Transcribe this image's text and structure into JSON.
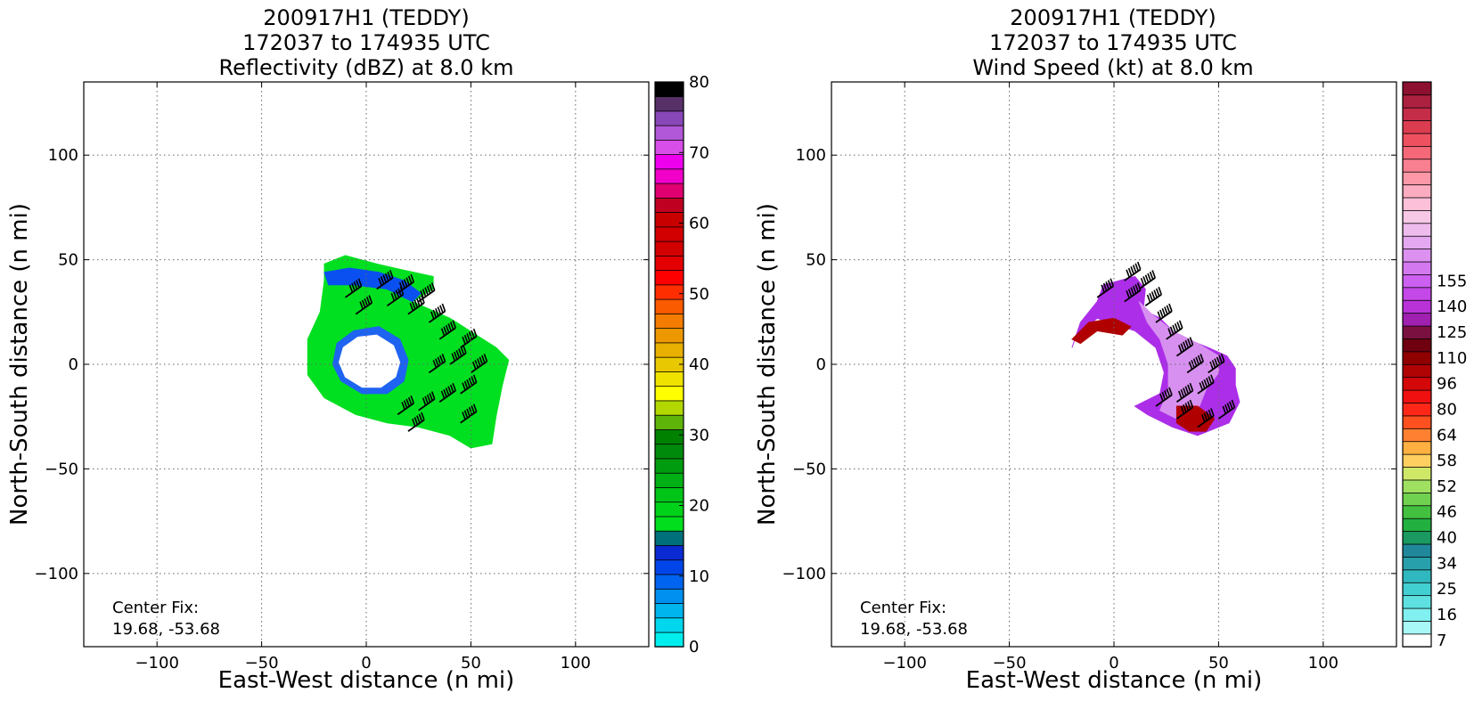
{
  "chart_data": [
    {
      "type": "heatmap",
      "title_lines": [
        "200917H1 (TEDDY)",
        "172037 to 174935 UTC",
        "Reflectivity (dBZ) at 8.0 km"
      ],
      "xlabel": "East-West distance (n mi)",
      "ylabel": "North-South distance (n mi)",
      "xlim": [
        -135,
        135
      ],
      "ylim": [
        -135,
        135
      ],
      "xticks": [
        -100,
        -50,
        0,
        50,
        100
      ],
      "yticks": [
        -100,
        -50,
        0,
        50,
        100
      ],
      "xtick_labels": [
        "−100",
        "−50",
        "0",
        "50",
        "100"
      ],
      "ytick_labels": [
        "−100",
        "−50",
        "0",
        "50",
        "100"
      ],
      "grid": true,
      "annotation_lines": [
        "Center Fix:",
        "19.68, -53.68"
      ],
      "colorbar": {
        "range": [
          0,
          80
        ],
        "tick_values": [
          0,
          10,
          20,
          30,
          40,
          50,
          60,
          70,
          80
        ],
        "tick_labels": [
          "0",
          "10",
          "20",
          "30",
          "40",
          "50",
          "60",
          "70",
          "80"
        ],
        "colors": [
          "#00eeee",
          "#00d6ee",
          "#00b4ee",
          "#0090f0",
          "#0064f0",
          "#0045e8",
          "#0a2ad2",
          "#00707a",
          "#00de1e",
          "#00d21a",
          "#00c418",
          "#00b014",
          "#009c10",
          "#008a0c",
          "#008200",
          "#5fb40a",
          "#b2d800",
          "#ffff00",
          "#efe200",
          "#e8c800",
          "#e8b000",
          "#ee9800",
          "#f47c00",
          "#fa5a00",
          "#ff2e00",
          "#ff0000",
          "#e40000",
          "#d20000",
          "#d20000",
          "#c80000",
          "#c00020",
          "#e00070",
          "#f000c8",
          "#ee00ee",
          "#d84ee8",
          "#b058d8",
          "#8848b8",
          "#583068",
          "#000000"
        ]
      },
      "regions": [
        {
          "name": "outer-echo",
          "color": "#00e020",
          "points": [
            [
              -20,
              48
            ],
            [
              -10,
              52
            ],
            [
              5,
              48
            ],
            [
              18,
              45
            ],
            [
              32,
              42
            ],
            [
              32,
              36
            ],
            [
              22,
              30
            ],
            [
              40,
              22
            ],
            [
              62,
              8
            ],
            [
              68,
              2
            ],
            [
              65,
              -10
            ],
            [
              62,
              -25
            ],
            [
              60,
              -38
            ],
            [
              50,
              -40
            ],
            [
              40,
              -34
            ],
            [
              25,
              -30
            ],
            [
              10,
              -28
            ],
            [
              -5,
              -24
            ],
            [
              -20,
              -16
            ],
            [
              -28,
              -5
            ],
            [
              -28,
              12
            ],
            [
              -22,
              25
            ],
            [
              -20,
              40
            ]
          ]
        },
        {
          "name": "eye-ring",
          "color": "#1e64f0",
          "points": [
            [
              -14,
              10
            ],
            [
              -6,
              16
            ],
            [
              6,
              18
            ],
            [
              16,
              12
            ],
            [
              20,
              2
            ],
            [
              18,
              -8
            ],
            [
              10,
              -14
            ],
            [
              -2,
              -14
            ],
            [
              -12,
              -8
            ],
            [
              -16,
              0
            ]
          ]
        },
        {
          "name": "eye",
          "color": "#ffffff",
          "points": [
            [
              -11,
              8
            ],
            [
              -4,
              13
            ],
            [
              5,
              14
            ],
            [
              13,
              9
            ],
            [
              16,
              1
            ],
            [
              14,
              -6
            ],
            [
              7,
              -11
            ],
            [
              -2,
              -11
            ],
            [
              -10,
              -6
            ],
            [
              -13,
              1
            ]
          ]
        },
        {
          "name": "north-band",
          "color": "#0a50f0",
          "points": [
            [
              -20,
              44
            ],
            [
              -8,
              46
            ],
            [
              6,
              44
            ],
            [
              18,
              40
            ],
            [
              26,
              34
            ],
            [
              22,
              30
            ],
            [
              10,
              36
            ],
            [
              -6,
              38
            ],
            [
              -18,
              38
            ]
          ]
        }
      ],
      "wind_barbs": [
        [
          5,
          36,
          60
        ],
        [
          15,
          34,
          60
        ],
        [
          25,
          30,
          55
        ],
        [
          10,
          28,
          50
        ],
        [
          20,
          24,
          55
        ],
        [
          30,
          20,
          60
        ],
        [
          35,
          12,
          55
        ],
        [
          45,
          8,
          60
        ],
        [
          40,
          0,
          55
        ],
        [
          50,
          -4,
          55
        ],
        [
          30,
          -4,
          50
        ],
        [
          45,
          -14,
          55
        ],
        [
          35,
          -18,
          55
        ],
        [
          25,
          -22,
          50
        ],
        [
          15,
          -24,
          50
        ],
        [
          45,
          -28,
          55
        ],
        [
          20,
          -32,
          45
        ],
        [
          -5,
          24,
          45
        ],
        [
          -10,
          32,
          45
        ]
      ]
    },
    {
      "type": "heatmap",
      "title_lines": [
        "200917H1 (TEDDY)",
        "172037 to 174935 UTC",
        "Wind Speed (kt) at 8.0 km"
      ],
      "xlabel": "East-West distance (n mi)",
      "ylabel": "North-South distance (n mi)",
      "xlim": [
        -135,
        135
      ],
      "ylim": [
        -135,
        135
      ],
      "xticks": [
        -100,
        -50,
        0,
        50,
        100
      ],
      "yticks": [
        -100,
        -50,
        0,
        50,
        100
      ],
      "xtick_labels": [
        "−100",
        "−50",
        "0",
        "50",
        "100"
      ],
      "ytick_labels": [
        "−100",
        "−50",
        "0",
        "50",
        "100"
      ],
      "grid": true,
      "annotation_lines": [
        "Center Fix:",
        "19.68, -53.68"
      ],
      "colorbar": {
        "tick_labels": [
          "7",
          "16",
          "25",
          "34",
          "40",
          "46",
          "52",
          "58",
          "64",
          "80",
          "96",
          "110",
          "125",
          "140",
          "155"
        ],
        "tick_bins": [
          0,
          2,
          4,
          6,
          8,
          10,
          12,
          14,
          16,
          18,
          20,
          22,
          24,
          26,
          28
        ],
        "colors": [
          "#ffffff",
          "#a8f8f8",
          "#80f0f0",
          "#5ee0e0",
          "#42cfd2",
          "#30b8c0",
          "#28a0ac",
          "#20889a",
          "#1a9a60",
          "#22b040",
          "#44c040",
          "#70d050",
          "#a0e060",
          "#d0e868",
          "#ffd060",
          "#ffb040",
          "#ff8030",
          "#ff5020",
          "#ff2818",
          "#f01010",
          "#d40808",
          "#b00404",
          "#900000",
          "#6e0010",
          "#7a1040",
          "#a020b0",
          "#b832d8",
          "#c448e8",
          "#cc60f0",
          "#d478f0",
          "#dc90f0",
          "#e4a8f0",
          "#eebcec",
          "#f6c8e6",
          "#fcc0d8",
          "#fcacc0",
          "#fc98a8",
          "#f88090",
          "#f46878",
          "#ee5060",
          "#dc3c50",
          "#c42c48",
          "#ac2040",
          "#8c1030"
        ]
      },
      "regions": [
        {
          "name": "outer-winds",
          "color": "#ac2ee8",
          "points": [
            [
              -5,
              38
            ],
            [
              10,
              42
            ],
            [
              15,
              36
            ],
            [
              14,
              26
            ],
            [
              22,
              22
            ],
            [
              30,
              14
            ],
            [
              45,
              8
            ],
            [
              54,
              4
            ],
            [
              58,
              -2
            ],
            [
              58,
              -10
            ],
            [
              60,
              -18
            ],
            [
              55,
              -28
            ],
            [
              40,
              -34
            ],
            [
              28,
              -30
            ],
            [
              16,
              -24
            ],
            [
              10,
              -20
            ],
            [
              22,
              -14
            ],
            [
              24,
              -4
            ],
            [
              20,
              8
            ],
            [
              10,
              16
            ],
            [
              -8,
              22
            ],
            [
              -18,
              14
            ],
            [
              -20,
              8
            ],
            [
              -16,
              20
            ],
            [
              -8,
              30
            ]
          ]
        },
        {
          "name": "rmw-band",
          "color": "#d890f0",
          "points": [
            [
              12,
              30
            ],
            [
              18,
              24
            ],
            [
              28,
              16
            ],
            [
              40,
              10
            ],
            [
              50,
              4
            ],
            [
              50,
              -4
            ],
            [
              44,
              -12
            ],
            [
              40,
              -22
            ],
            [
              30,
              -26
            ],
            [
              22,
              -22
            ],
            [
              26,
              -12
            ],
            [
              26,
              0
            ],
            [
              22,
              12
            ],
            [
              16,
              20
            ]
          ]
        },
        {
          "name": "dark-red-edge",
          "color": "#b00000",
          "points": [
            [
              -20,
              12
            ],
            [
              -12,
              20
            ],
            [
              0,
              22
            ],
            [
              8,
              18
            ],
            [
              4,
              14
            ],
            [
              -8,
              16
            ],
            [
              -16,
              10
            ]
          ]
        },
        {
          "name": "southeast-red",
          "color": "#b00000",
          "points": [
            [
              30,
              -20
            ],
            [
              40,
              -20
            ],
            [
              48,
              -26
            ],
            [
              44,
              -32
            ],
            [
              36,
              -32
            ],
            [
              30,
              -28
            ]
          ]
        }
      ],
      "wind_barbs": [
        [
          5,
          40,
          60
        ],
        [
          12,
          36,
          60
        ],
        [
          5,
          30,
          55
        ],
        [
          15,
          28,
          60
        ],
        [
          20,
          20,
          60
        ],
        [
          25,
          12,
          60
        ],
        [
          30,
          4,
          55
        ],
        [
          35,
          -4,
          55
        ],
        [
          45,
          -4,
          55
        ],
        [
          40,
          -14,
          55
        ],
        [
          30,
          -18,
          55
        ],
        [
          20,
          -20,
          50
        ],
        [
          30,
          -26,
          50
        ],
        [
          40,
          -30,
          50
        ],
        [
          50,
          -26,
          50
        ],
        [
          -8,
          32,
          50
        ]
      ]
    }
  ]
}
